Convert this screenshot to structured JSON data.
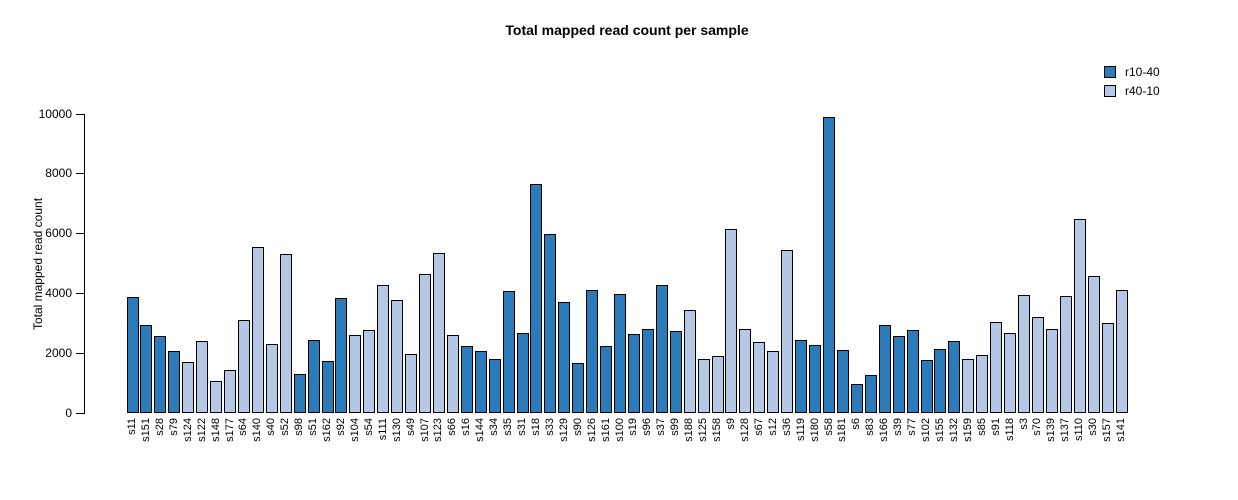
{
  "chart_data": {
    "type": "bar",
    "title": "Total mapped read count per sample",
    "xlabel": "",
    "ylabel": "Total mapped read count",
    "ylim": [
      0,
      10000
    ],
    "yticks": [
      0,
      2000,
      4000,
      6000,
      8000,
      10000
    ],
    "grid": false,
    "legend_position": "top-right",
    "legend": [
      {
        "label": "r10-40",
        "color": "#2b7ab9"
      },
      {
        "label": "r40-10",
        "color": "#b4c8e6"
      }
    ],
    "samples": [
      {
        "label": "s11",
        "value": 3900,
        "series": "r10-40"
      },
      {
        "label": "s151",
        "value": 2950,
        "series": "r10-40"
      },
      {
        "label": "s28",
        "value": 2580,
        "series": "r10-40"
      },
      {
        "label": "s79",
        "value": 2100,
        "series": "r10-40"
      },
      {
        "label": "s124",
        "value": 1720,
        "series": "r40-10"
      },
      {
        "label": "s122",
        "value": 2420,
        "series": "r40-10"
      },
      {
        "label": "s148",
        "value": 1100,
        "series": "r40-10"
      },
      {
        "label": "s177",
        "value": 1440,
        "series": "r40-10"
      },
      {
        "label": "s64",
        "value": 3110,
        "series": "r40-10"
      },
      {
        "label": "s140",
        "value": 5560,
        "series": "r40-10"
      },
      {
        "label": "s40",
        "value": 2330,
        "series": "r40-10"
      },
      {
        "label": "s52",
        "value": 5320,
        "series": "r40-10"
      },
      {
        "label": "s98",
        "value": 1330,
        "series": "r10-40"
      },
      {
        "label": "s51",
        "value": 2440,
        "series": "r10-40"
      },
      {
        "label": "s162",
        "value": 1750,
        "series": "r10-40"
      },
      {
        "label": "s92",
        "value": 3840,
        "series": "r10-40"
      },
      {
        "label": "s104",
        "value": 2610,
        "series": "r40-10"
      },
      {
        "label": "s54",
        "value": 2800,
        "series": "r40-10"
      },
      {
        "label": "s111",
        "value": 4290,
        "series": "r40-10"
      },
      {
        "label": "s130",
        "value": 3800,
        "series": "r40-10"
      },
      {
        "label": "s49",
        "value": 2000,
        "series": "r40-10"
      },
      {
        "label": "s107",
        "value": 4670,
        "series": "r40-10"
      },
      {
        "label": "s123",
        "value": 5370,
        "series": "r40-10"
      },
      {
        "label": "s66",
        "value": 2610,
        "series": "r40-10"
      },
      {
        "label": "s16",
        "value": 2270,
        "series": "r10-40"
      },
      {
        "label": "s144",
        "value": 2100,
        "series": "r10-40"
      },
      {
        "label": "s34",
        "value": 1830,
        "series": "r10-40"
      },
      {
        "label": "s35",
        "value": 4080,
        "series": "r10-40"
      },
      {
        "label": "s31",
        "value": 2690,
        "series": "r10-40"
      },
      {
        "label": "s18",
        "value": 7650,
        "series": "r10-40"
      },
      {
        "label": "s33",
        "value": 6000,
        "series": "r10-40"
      },
      {
        "label": "s129",
        "value": 3720,
        "series": "r10-40"
      },
      {
        "label": "s90",
        "value": 1700,
        "series": "r10-40"
      },
      {
        "label": "s126",
        "value": 4110,
        "series": "r10-40"
      },
      {
        "label": "s161",
        "value": 2240,
        "series": "r10-40"
      },
      {
        "label": "s100",
        "value": 4000,
        "series": "r10-40"
      },
      {
        "label": "s19",
        "value": 2640,
        "series": "r10-40"
      },
      {
        "label": "s96",
        "value": 2830,
        "series": "r10-40"
      },
      {
        "label": "s37",
        "value": 4280,
        "series": "r10-40"
      },
      {
        "label": "s99",
        "value": 2740,
        "series": "r10-40"
      },
      {
        "label": "s188",
        "value": 3440,
        "series": "r40-10"
      },
      {
        "label": "s125",
        "value": 1830,
        "series": "r40-10"
      },
      {
        "label": "s158",
        "value": 1910,
        "series": "r40-10"
      },
      {
        "label": "s9",
        "value": 6150,
        "series": "r40-10"
      },
      {
        "label": "s128",
        "value": 2830,
        "series": "r40-10"
      },
      {
        "label": "s67",
        "value": 2390,
        "series": "r40-10"
      },
      {
        "label": "s12",
        "value": 2080,
        "series": "r40-10"
      },
      {
        "label": "s36",
        "value": 5470,
        "series": "r40-10"
      },
      {
        "label": "s119",
        "value": 2460,
        "series": "r10-40"
      },
      {
        "label": "s180",
        "value": 2300,
        "series": "r10-40"
      },
      {
        "label": "s58",
        "value": 9900,
        "series": "r10-40"
      },
      {
        "label": "s181",
        "value": 2130,
        "series": "r10-40"
      },
      {
        "label": "s6",
        "value": 990,
        "series": "r10-40"
      },
      {
        "label": "s83",
        "value": 1270,
        "series": "r10-40"
      },
      {
        "label": "s166",
        "value": 2970,
        "series": "r10-40"
      },
      {
        "label": "s39",
        "value": 2580,
        "series": "r10-40"
      },
      {
        "label": "s77",
        "value": 2780,
        "series": "r10-40"
      },
      {
        "label": "s102",
        "value": 1770,
        "series": "r10-40"
      },
      {
        "label": "s155",
        "value": 2160,
        "series": "r10-40"
      },
      {
        "label": "s132",
        "value": 2410,
        "series": "r10-40"
      },
      {
        "label": "s159",
        "value": 1830,
        "series": "r40-10"
      },
      {
        "label": "s85",
        "value": 1940,
        "series": "r40-10"
      },
      {
        "label": "s91",
        "value": 3050,
        "series": "r40-10"
      },
      {
        "label": "s118",
        "value": 2700,
        "series": "r40-10"
      },
      {
        "label": "s3",
        "value": 3940,
        "series": "r40-10"
      },
      {
        "label": "s70",
        "value": 3220,
        "series": "r40-10"
      },
      {
        "label": "s139",
        "value": 2830,
        "series": "r40-10"
      },
      {
        "label": "s137",
        "value": 3910,
        "series": "r40-10"
      },
      {
        "label": "s110",
        "value": 6480,
        "series": "r40-10"
      },
      {
        "label": "s30",
        "value": 4590,
        "series": "r40-10"
      },
      {
        "label": "s157",
        "value": 3030,
        "series": "r40-10"
      },
      {
        "label": "s141",
        "value": 4140,
        "series": "r40-10"
      }
    ]
  }
}
